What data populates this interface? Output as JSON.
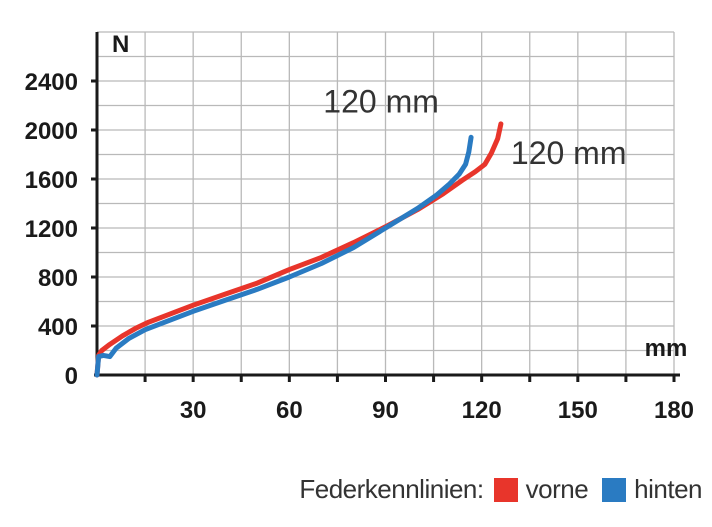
{
  "chart_data": {
    "type": "line",
    "xlabel": "mm",
    "ylabel": "N",
    "xlim": [
      0,
      180
    ],
    "ylim": [
      0,
      2400
    ],
    "xticks": [
      30,
      60,
      90,
      120,
      150,
      180
    ],
    "xtick_labels": [
      "30",
      "60",
      "90",
      "120",
      "150",
      "180"
    ],
    "yticks": [
      0,
      400,
      800,
      1200,
      1600,
      2000,
      2400
    ],
    "ytick_labels": [
      "0",
      "400",
      "800",
      "1200",
      "1600",
      "2000",
      "2400"
    ],
    "grid": true,
    "legend_position": "bottom-right",
    "series": [
      {
        "name": "vorne",
        "color": "#e8352b",
        "end_label": "120 mm",
        "points": [
          [
            0,
            0
          ],
          [
            0.5,
            160
          ],
          [
            1.5,
            200
          ],
          [
            4,
            250
          ],
          [
            8,
            320
          ],
          [
            12,
            380
          ],
          [
            16,
            430
          ],
          [
            20,
            470
          ],
          [
            25,
            520
          ],
          [
            30,
            570
          ],
          [
            40,
            660
          ],
          [
            50,
            750
          ],
          [
            60,
            860
          ],
          [
            70,
            960
          ],
          [
            80,
            1080
          ],
          [
            90,
            1210
          ],
          [
            100,
            1350
          ],
          [
            108,
            1480
          ],
          [
            114,
            1590
          ],
          [
            118,
            1660
          ],
          [
            121,
            1720
          ],
          [
            123,
            1810
          ],
          [
            125,
            1930
          ],
          [
            126,
            2050
          ]
        ]
      },
      {
        "name": "hinten",
        "color": "#2a7bc2",
        "end_label": "120 mm",
        "points": [
          [
            0,
            0
          ],
          [
            0.5,
            150
          ],
          [
            2,
            160
          ],
          [
            4,
            150
          ],
          [
            6,
            220
          ],
          [
            10,
            300
          ],
          [
            15,
            370
          ],
          [
            20,
            420
          ],
          [
            30,
            520
          ],
          [
            40,
            610
          ],
          [
            50,
            700
          ],
          [
            60,
            800
          ],
          [
            70,
            910
          ],
          [
            80,
            1040
          ],
          [
            90,
            1200
          ],
          [
            100,
            1360
          ],
          [
            106,
            1470
          ],
          [
            110,
            1560
          ],
          [
            113,
            1640
          ],
          [
            115,
            1720
          ],
          [
            116,
            1820
          ],
          [
            116.7,
            1940
          ]
        ]
      }
    ]
  },
  "legend": {
    "title": "Federkennlinien:",
    "items": [
      {
        "label": "vorne",
        "color": "#e8352b"
      },
      {
        "label": "hinten",
        "color": "#2a7bc2"
      }
    ]
  }
}
